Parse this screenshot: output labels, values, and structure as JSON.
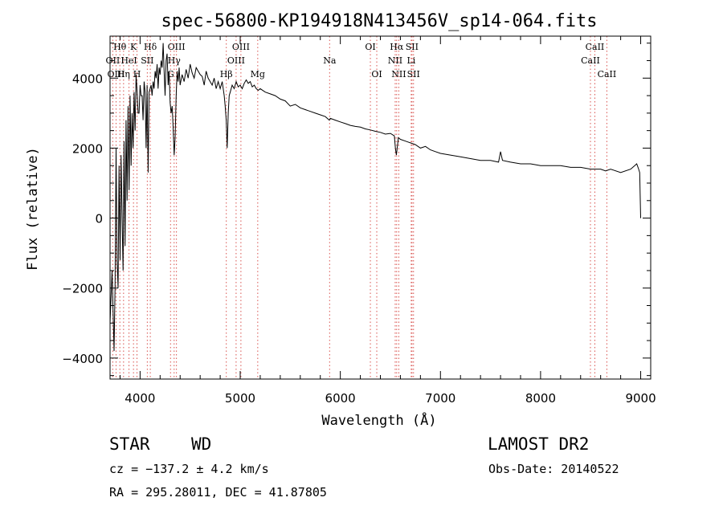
{
  "chart_data": {
    "type": "line",
    "title": "spec-56800-KP194918N413456V_sp14-064.fits",
    "xlabel": "Wavelength (Å)",
    "ylabel": "Flux (relative)",
    "xlim": [
      3700,
      9100
    ],
    "ylim": [
      -4600,
      5200
    ],
    "xticks": [
      4000,
      5000,
      6000,
      7000,
      8000,
      9000
    ],
    "xtick_labels": [
      "4000",
      "5000",
      "6000",
      "7000",
      "8000",
      "9000"
    ],
    "yticks": [
      -4000,
      -2000,
      0,
      2000,
      4000
    ],
    "ytick_labels": [
      "−4000",
      "−2000",
      "0",
      "2000",
      "4000"
    ],
    "grid": false,
    "series": [
      {
        "name": "flux",
        "x": [
          3700,
          3720,
          3740,
          3750,
          3760,
          3770,
          3780,
          3790,
          3800,
          3810,
          3820,
          3830,
          3840,
          3850,
          3860,
          3870,
          3880,
          3890,
          3900,
          3910,
          3920,
          3930,
          3940,
          3950,
          3960,
          3970,
          3980,
          3990,
          4000,
          4010,
          4020,
          4030,
          4040,
          4050,
          4060,
          4070,
          4080,
          4090,
          4100,
          4110,
          4120,
          4130,
          4140,
          4150,
          4160,
          4170,
          4180,
          4190,
          4200,
          4210,
          4220,
          4230,
          4240,
          4250,
          4260,
          4270,
          4280,
          4290,
          4300,
          4310,
          4320,
          4330,
          4340,
          4350,
          4360,
          4370,
          4380,
          4390,
          4400,
          4420,
          4440,
          4460,
          4480,
          4500,
          4520,
          4540,
          4560,
          4580,
          4600,
          4620,
          4640,
          4660,
          4680,
          4700,
          4720,
          4740,
          4760,
          4780,
          4800,
          4820,
          4840,
          4850,
          4860,
          4870,
          4880,
          4890,
          4900,
          4920,
          4940,
          4960,
          4980,
          5000,
          5020,
          5040,
          5060,
          5080,
          5100,
          5120,
          5140,
          5160,
          5180,
          5200,
          5250,
          5300,
          5350,
          5400,
          5450,
          5500,
          5550,
          5600,
          5650,
          5700,
          5750,
          5800,
          5850,
          5890,
          5900,
          5950,
          6000,
          6050,
          6100,
          6150,
          6200,
          6250,
          6300,
          6350,
          6400,
          6450,
          6500,
          6540,
          6550,
          6560,
          6570,
          6580,
          6600,
          6650,
          6700,
          6750,
          6800,
          6850,
          6900,
          6950,
          7000,
          7100,
          7200,
          7300,
          7400,
          7500,
          7580,
          7600,
          7620,
          7700,
          7800,
          7900,
          8000,
          8100,
          8200,
          8300,
          8400,
          8500,
          8600,
          8650,
          8700,
          8800,
          8900,
          8940,
          8960,
          8980,
          8990,
          9000
        ],
        "y": [
          -3000,
          -1500,
          -3800,
          -2000,
          2000,
          -1200,
          -2000,
          1500,
          -1200,
          1800,
          0,
          -1500,
          2200,
          -800,
          2800,
          500,
          3200,
          800,
          3500,
          1500,
          3000,
          2000,
          3600,
          2500,
          4100,
          3600,
          3000,
          3000,
          3800,
          3500,
          3500,
          2800,
          3900,
          3600,
          2000,
          3800,
          1300,
          3600,
          3700,
          3800,
          3500,
          3900,
          3700,
          4200,
          4000,
          4400,
          3700,
          4300,
          4100,
          4500,
          4300,
          5000,
          4200,
          3500,
          4500,
          4700,
          3800,
          4200,
          3300,
          3000,
          3200,
          2600,
          1800,
          2300,
          3500,
          4200,
          3900,
          4300,
          3800,
          4100,
          3900,
          4250,
          4000,
          4400,
          4150,
          4000,
          4300,
          4200,
          4100,
          4050,
          3800,
          4200,
          4000,
          3900,
          3800,
          4000,
          3700,
          3900,
          3700,
          3900,
          3500,
          3200,
          2800,
          2000,
          3000,
          3500,
          3600,
          3800,
          3700,
          3900,
          3750,
          3800,
          3700,
          3850,
          3950,
          3850,
          3900,
          3750,
          3800,
          3700,
          3650,
          3700,
          3600,
          3550,
          3500,
          3400,
          3350,
          3200,
          3250,
          3150,
          3100,
          3050,
          3000,
          2950,
          2900,
          2800,
          2850,
          2800,
          2750,
          2700,
          2650,
          2620,
          2600,
          2550,
          2520,
          2480,
          2450,
          2400,
          2420,
          2350,
          2000,
          1800,
          2050,
          2300,
          2250,
          2200,
          2150,
          2100,
          2000,
          2050,
          1950,
          1900,
          1850,
          1800,
          1750,
          1700,
          1650,
          1650,
          1600,
          1900,
          1650,
          1600,
          1550,
          1550,
          1500,
          1500,
          1500,
          1450,
          1450,
          1400,
          1400,
          1350,
          1400,
          1300,
          1400,
          1500,
          1550,
          1400,
          1300,
          0
        ]
      }
    ],
    "lines": [
      {
        "label": "Hθ",
        "wave": 3798,
        "row": 1
      },
      {
        "label": "OII",
        "wave": 3727,
        "row": 2
      },
      {
        "label": "OIII",
        "wave": 3760,
        "row": 3
      },
      {
        "label": "K",
        "wave": 3934,
        "row": 1
      },
      {
        "label": "Hη",
        "wave": 3835,
        "row": 3
      },
      {
        "label": "HeI",
        "wave": 3889,
        "row": 2
      },
      {
        "label": "SII",
        "wave": 4072,
        "row": 2
      },
      {
        "label": "H",
        "wave": 3969,
        "row": 3
      },
      {
        "label": "Hδ",
        "wave": 4102,
        "row": 1
      },
      {
        "label": "OIII",
        "wave": 4363,
        "row": 1
      },
      {
        "label": "Hγ",
        "wave": 4340,
        "row": 2
      },
      {
        "label": "G",
        "wave": 4304,
        "row": 3
      },
      {
        "label": "Hβ",
        "wave": 4861,
        "row": 3
      },
      {
        "label": "OIII",
        "wave": 5007,
        "row": 1
      },
      {
        "label": "OIII",
        "wave": 4959,
        "row": 2
      },
      {
        "label": "Mg",
        "wave": 5175,
        "row": 3
      },
      {
        "label": "Na",
        "wave": 5893,
        "row": 2
      },
      {
        "label": "OI",
        "wave": 6300,
        "row": 1
      },
      {
        "label": "OI",
        "wave": 6364,
        "row": 3
      },
      {
        "label": "Hα",
        "wave": 6563,
        "row": 1
      },
      {
        "label": "SII",
        "wave": 6716,
        "row": 1
      },
      {
        "label": "NII",
        "wave": 6548,
        "row": 2
      },
      {
        "label": "Li",
        "wave": 6708,
        "row": 2
      },
      {
        "label": "NII",
        "wave": 6584,
        "row": 3
      },
      {
        "label": "SII",
        "wave": 6731,
        "row": 3
      },
      {
        "label": "CaII",
        "wave": 8542,
        "row": 1
      },
      {
        "label": "CaII",
        "wave": 8498,
        "row": 2
      },
      {
        "label": "CaII",
        "wave": 8662,
        "row": 3
      }
    ]
  },
  "info": {
    "object_type": "STAR",
    "subclass": "WD",
    "survey": "LAMOST DR2",
    "cz": "cz = −137.2 ± 4.2 km/s",
    "obs_date": "Obs-Date: 20140522",
    "coords": "RA = 295.28011, DEC =  41.87805"
  },
  "colors": {
    "line": "#000000",
    "marker": "#d9534f"
  }
}
